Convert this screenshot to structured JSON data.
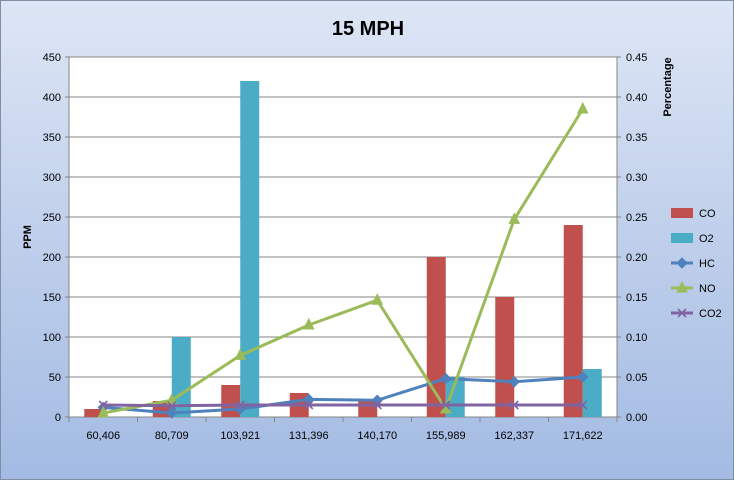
{
  "chart_data": {
    "type": "bar",
    "title": "15 MPH",
    "categories": [
      "60,406",
      "80,709",
      "103,921",
      "131,396",
      "140,170",
      "155,989",
      "162,337",
      "171,622"
    ],
    "y_left": {
      "label": "PPM",
      "range": [
        0,
        450
      ],
      "ticks": [
        "0",
        "50",
        "100",
        "150",
        "200",
        "250",
        "300",
        "350",
        "400",
        "450"
      ]
    },
    "y_right": {
      "label": "Percentage",
      "range": [
        0,
        0.45
      ],
      "ticks": [
        "0.00",
        "0.05",
        "0.10",
        "0.15",
        "0.20",
        "0.25",
        "0.30",
        "0.35",
        "0.40",
        "0.45"
      ]
    },
    "grid": "horizontal",
    "legend_position": "right",
    "bar_series": [
      {
        "name": "CO",
        "color": "#c0504d",
        "axis": "left",
        "values": [
          10,
          20,
          40,
          30,
          20,
          200,
          150,
          240
        ]
      },
      {
        "name": "O2",
        "color": "#4bacc6",
        "axis": "left",
        "values": [
          0,
          100,
          420,
          0,
          0,
          50,
          0,
          60
        ]
      }
    ],
    "line_series": [
      {
        "name": "HC",
        "color": "#4f81bd",
        "marker": "diamond",
        "axis": "left",
        "values": [
          12,
          5,
          10,
          22,
          21,
          48,
          44,
          50
        ]
      },
      {
        "name": "NO",
        "color": "#9bbb59",
        "marker": "triangle",
        "axis": "right",
        "values": [
          0.005,
          0.021,
          0.077,
          0.115,
          0.146,
          0.01,
          0.247,
          0.385
        ]
      },
      {
        "name": "CO2",
        "color": "#8064a2",
        "marker": "x",
        "axis": "left",
        "values": [
          15,
          14,
          15,
          15,
          15,
          15,
          15,
          15
        ]
      }
    ]
  }
}
